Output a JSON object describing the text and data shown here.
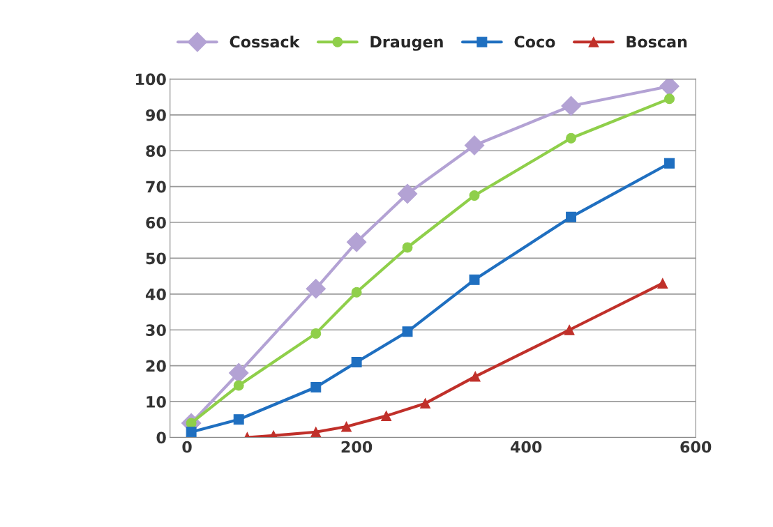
{
  "chart_data": {
    "type": "line",
    "xlim": [
      -20,
      600
    ],
    "xticks": [
      0,
      200,
      400,
      600
    ],
    "ylim": [
      0,
      100
    ],
    "yticks": [
      0,
      10,
      20,
      30,
      40,
      50,
      60,
      70,
      80,
      90,
      100
    ],
    "grid": "y",
    "legend": "top",
    "series": [
      {
        "name": "Cossack",
        "color": "#b3a2d4",
        "marker": "diamond",
        "x": [
          5,
          61,
          152,
          200,
          260,
          339,
          453,
          569
        ],
        "values": [
          4,
          18,
          41.5,
          54.5,
          68,
          81.5,
          92.5,
          98
        ]
      },
      {
        "name": "Draugen",
        "color": "#8fcf4a",
        "marker": "circle",
        "x": [
          5,
          61,
          152,
          200,
          260,
          339,
          453,
          569
        ],
        "values": [
          4,
          14.5,
          29,
          40.5,
          53,
          67.5,
          83.5,
          94.5
        ]
      },
      {
        "name": "Coco",
        "color": "#1f6fc0",
        "marker": "square",
        "x": [
          5,
          61,
          152,
          200,
          260,
          339,
          453,
          569
        ],
        "values": [
          1.5,
          5,
          14,
          21,
          29.5,
          44,
          61.5,
          76.5
        ]
      },
      {
        "name": "Boscan",
        "color": "#c0302a",
        "marker": "triangle",
        "x": [
          71,
          102,
          152,
          188,
          235,
          281,
          340,
          451,
          561
        ],
        "values": [
          0,
          0.5,
          1.5,
          3,
          6,
          9.5,
          17,
          30,
          43
        ]
      }
    ]
  }
}
